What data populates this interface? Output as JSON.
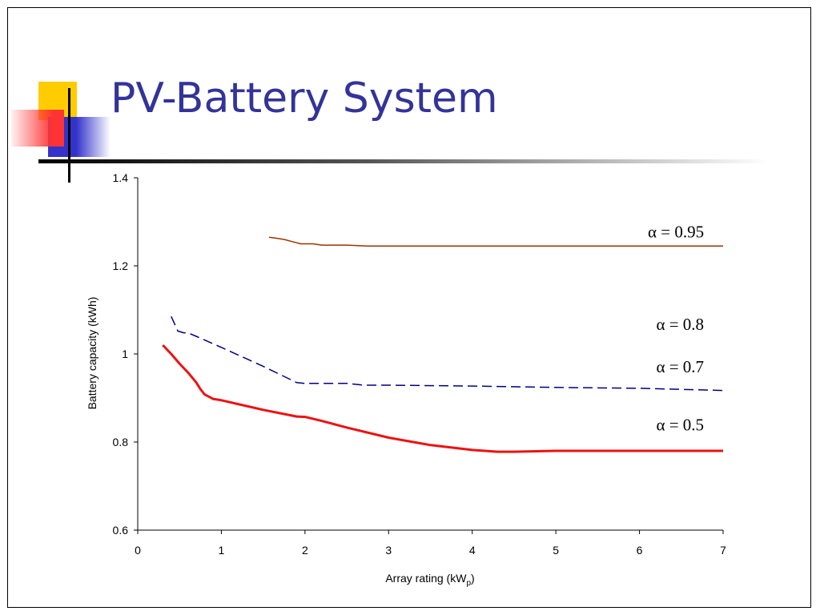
{
  "slide": {
    "title": "PV-Battery System",
    "colors": {
      "title": "#333399",
      "yellow": "#ffcc00",
      "blue": "#3333cc",
      "red": "#ff3333"
    }
  },
  "chart_data": {
    "type": "line",
    "title": "",
    "xlabel_main": "Array rating (kW",
    "xlabel_sub": "p",
    "xlabel_end": ")",
    "ylabel": "Battery capacity (kWh)",
    "xlim": [
      0,
      7
    ],
    "ylim": [
      0.6,
      1.4
    ],
    "xticks": [
      0,
      1,
      2,
      3,
      4,
      5,
      6,
      7
    ],
    "xtick_labels": [
      "0",
      "1",
      "2",
      "3",
      "4",
      "5",
      "6",
      "7"
    ],
    "yticks": [
      0.6,
      0.8,
      1.0,
      1.2,
      1.4
    ],
    "ytick_labels": [
      "0.6",
      "0.8",
      "1",
      "1.2",
      "1.4"
    ],
    "grid": false,
    "legend": "none",
    "series": [
      {
        "color": "#993300",
        "dash": "solid",
        "width": 1.5,
        "x": [
          1.57,
          1.65,
          1.75,
          1.85,
          1.95,
          2.1,
          2.2,
          2.5,
          2.75,
          3,
          4,
          5,
          6,
          7
        ],
        "y": [
          1.265,
          1.263,
          1.26,
          1.255,
          1.25,
          1.25,
          1.247,
          1.247,
          1.245,
          1.245,
          1.245,
          1.245,
          1.245,
          1.245
        ]
      },
      {
        "color": "#000080",
        "dash": "dashed",
        "width": 1.5,
        "x": [
          0.4,
          0.48,
          0.55,
          0.6,
          0.7,
          1.0,
          1.5,
          1.9,
          2.0,
          2.5,
          2.7,
          3,
          4,
          5,
          6,
          7
        ],
        "y": [
          1.085,
          1.052,
          1.048,
          1.048,
          1.04,
          1.015,
          0.972,
          0.935,
          0.933,
          0.933,
          0.929,
          0.929,
          0.927,
          0.924,
          0.922,
          0.917
        ]
      },
      {
        "color": "#ee1111",
        "dash": "solid",
        "width": 3,
        "x": [
          0.3,
          0.4,
          0.5,
          0.6,
          0.7,
          0.75,
          0.8,
          0.9,
          1.0,
          1.5,
          1.9,
          2.0,
          2.2,
          2.5,
          3.0,
          3.5,
          4.0,
          4.3,
          4.5,
          5.0,
          6.0,
          7.0
        ],
        "y": [
          1.02,
          1.0,
          0.978,
          0.958,
          0.935,
          0.92,
          0.908,
          0.898,
          0.895,
          0.873,
          0.858,
          0.857,
          0.848,
          0.833,
          0.81,
          0.793,
          0.782,
          0.778,
          0.778,
          0.78,
          0.78,
          0.78
        ]
      }
    ],
    "annotations": [
      {
        "text": "α = 0.95",
        "x": 6.1,
        "y": 1.265
      },
      {
        "text": "α = 0.8",
        "x": 6.2,
        "y": 1.055
      },
      {
        "text": "α = 0.7",
        "x": 6.2,
        "y": 0.958
      },
      {
        "text": "α = 0.5",
        "x": 6.2,
        "y": 0.826
      }
    ]
  }
}
